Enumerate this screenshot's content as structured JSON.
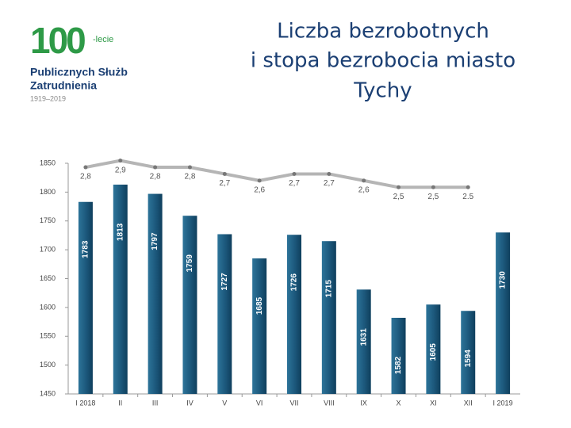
{
  "logo": {
    "number": "100",
    "suffix": "-lecie",
    "line1": "Publicznych Służb",
    "line2": "Zatrudnienia",
    "years": "1919–2019"
  },
  "chart_data": {
    "type": "bar-line",
    "title": [
      "Liczba bezrobotnych",
      "i stopa bezrobocia miasto",
      "Tychy"
    ],
    "categories": [
      "I 2018",
      "II",
      "III",
      "IV",
      "V",
      "VI",
      "VII",
      "VIII",
      "IX",
      "X",
      "XI",
      "XII",
      "I 2019"
    ],
    "series": [
      {
        "type": "bar",
        "color": "#1d5a7e",
        "values": [
          1783,
          1813,
          1797,
          1759,
          1727,
          1685,
          1726,
          1715,
          1631,
          1582,
          1605,
          1594,
          1730
        ]
      },
      {
        "type": "line",
        "axis": "y2",
        "color": "#b5b5b5",
        "values": [
          2.8,
          2.9,
          2.8,
          2.8,
          2.7,
          2.6,
          2.7,
          2.7,
          2.6,
          2.5,
          2.5,
          2.5,
          null
        ],
        "value_labels": [
          "2,8",
          "2,9",
          "2,8",
          "2,8",
          "2,7",
          "2,6",
          "2,7",
          "2,7",
          "2,6",
          "2,5",
          "2,5",
          "2.5",
          null
        ]
      }
    ],
    "ylim": [
      1450,
      1850
    ],
    "yticks": [
      1450,
      1500,
      1550,
      1600,
      1650,
      1700,
      1750,
      1800,
      1850
    ],
    "y2lim": [
      -0.6,
      2.86
    ]
  }
}
